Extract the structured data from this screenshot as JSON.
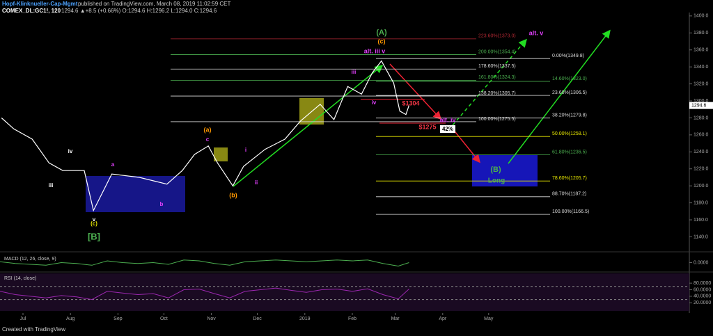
{
  "chart_data": {
    "type": "line",
    "title": "Hopf-Klinknueller-Cap-Mgmt",
    "subtitle": "published on TradingView.com, March 08, 2019 11:02:59 CET",
    "symbol": "COMEX_DL:GC1!, 120",
    "quote": "1294.6 ▲+8.5 (+0.66%) O:1294.6 H:1296.2 L:1294.0 C:1294.6",
    "xlim": [
      -15,
      435
    ],
    "xticks": [
      {
        "value": 0,
        "label": "Jul"
      },
      {
        "value": 31,
        "label": "Aug"
      },
      {
        "value": 62,
        "label": "Sep"
      },
      {
        "value": 92,
        "label": "Oct"
      },
      {
        "value": 123,
        "label": "Nov"
      },
      {
        "value": 153,
        "label": "Dec"
      },
      {
        "value": 184,
        "label": "2019"
      },
      {
        "value": 215,
        "label": "Feb"
      },
      {
        "value": 243,
        "label": "Mar"
      },
      {
        "value": 274,
        "label": "Apr"
      },
      {
        "value": 304,
        "label": "May"
      }
    ],
    "ylim": [
      1124,
      1404
    ],
    "yticks": [
      {
        "value": 1140,
        "label": "1140.0"
      },
      {
        "value": 1160,
        "label": "1160.0"
      },
      {
        "value": 1180,
        "label": "1180.0"
      },
      {
        "value": 1200,
        "label": "1200.0"
      },
      {
        "value": 1220,
        "label": "1220.0"
      },
      {
        "value": 1240,
        "label": "1240.0"
      },
      {
        "value": 1260,
        "label": "1260.0"
      },
      {
        "value": 1280,
        "label": "1280.0"
      },
      {
        "value": 1300,
        "label": "1300.0"
      },
      {
        "value": 1320,
        "label": "1320.0"
      },
      {
        "value": 1340,
        "label": "1340.0"
      },
      {
        "value": 1360,
        "label": "1360.0"
      },
      {
        "value": 1380,
        "label": "1380.0"
      },
      {
        "value": 1400,
        "label": "1400.0"
      }
    ],
    "series": [
      {
        "color": "#ffffff",
        "x": [
          -14,
          -6,
          6,
          17,
          26,
          40,
          46,
          58,
          76,
          94,
          104,
          112,
          121,
          127,
          137,
          144,
          158,
          171,
          181,
          194,
          203,
          212,
          221,
          228,
          234,
          242,
          246,
          250,
          252
        ],
        "values": [
          1280,
          1267,
          1255,
          1227,
          1218,
          1218,
          1171,
          1214,
          1210,
          1202,
          1218,
          1237,
          1247,
          1227,
          1200,
          1223,
          1243,
          1255,
          1276,
          1296,
          1278,
          1317,
          1308,
          1333,
          1347,
          1321,
          1288,
          1284,
          1294.6
        ]
      }
    ],
    "last_price": 1294.6,
    "fib_levels": [
      {
        "label": "223.60%(1373.0)",
        "value": 1373.0,
        "color": "#b22833"
      },
      {
        "label": "200.00%(1354.4)",
        "value": 1354.4,
        "color": "#4caf50"
      },
      {
        "label": "178.60%(1337.5)",
        "value": 1337.5,
        "color": "#dddddd"
      },
      {
        "label": "161.80%(1324.3)",
        "value": 1324.3,
        "color": "#4caf50"
      },
      {
        "label": "138.20%(1305.7)",
        "value": 1305.7,
        "color": "#dddddd"
      },
      {
        "label": "100.00%(1275.5)",
        "value": 1275.5,
        "color": "#dddddd"
      }
    ],
    "fib_levels_2": [
      {
        "label": "0.00%(1349.8)",
        "value": 1349.8,
        "color": "#dddddd"
      },
      {
        "label": "14.60%(1323.0)",
        "value": 1323.0,
        "color": "#4caf50"
      },
      {
        "label": "23.60%(1306.5)",
        "value": 1306.5,
        "color": "#dddddd"
      },
      {
        "label": "38.20%(1279.8)",
        "value": 1279.8,
        "color": "#dddddd"
      },
      {
        "label": "50.00%(1258.1)",
        "value": 1258.1,
        "color": "#e8e800"
      },
      {
        "label": "61.80%(1236.5)",
        "value": 1236.5,
        "color": "#4caf50"
      },
      {
        "label": "78.60%(1205.7)",
        "value": 1205.7,
        "color": "#e8e800"
      },
      {
        "label": "88.70%(1187.2)",
        "value": 1187.2,
        "color": "#dddddd"
      },
      {
        "label": "100.00%(1166.5)",
        "value": 1166.5,
        "color": "#dddddd"
      }
    ],
    "annotations": [
      {
        "text": "(A)",
        "color": "#4caf50"
      },
      {
        "text": "(c)",
        "color": "#ff9800"
      },
      {
        "text": "alt. iii  v",
        "color": "#e040fb"
      },
      {
        "text": "alt. v",
        "color": "#e040fb"
      },
      {
        "text": "iii",
        "color": "#e040fb"
      },
      {
        "text": "iv",
        "color": "#e040fb"
      },
      {
        "text": "$1304",
        "color": "#f23645"
      },
      {
        "text": "$1275",
        "color": "#f23645"
      },
      {
        "text": "alt. iv",
        "color": "#e040fb"
      },
      {
        "text": "(B)",
        "color": "#4caf50"
      },
      {
        "text": "Long",
        "color": "#4caf50"
      },
      {
        "text": "(a)",
        "color": "#ff9800"
      },
      {
        "text": "c",
        "color": "#e040fb"
      },
      {
        "text": "(b)",
        "color": "#ff9800"
      },
      {
        "text": "i",
        "color": "#e040fb"
      },
      {
        "text": "ii",
        "color": "#e040fb"
      },
      {
        "text": "a",
        "color": "#e040fb"
      },
      {
        "text": "b",
        "color": "#e040fb"
      },
      {
        "text": "iv",
        "color": "#ffffff"
      },
      {
        "text": "iii",
        "color": "#ffffff"
      },
      {
        "text": "v",
        "color": "#ffffff"
      },
      {
        "text": "(c)",
        "color": "#e8e800"
      },
      {
        "text": "[B]",
        "color": "#4caf50"
      }
    ],
    "box_label": "42%",
    "indicators": [
      {
        "type": "line",
        "title": "MACD (12, 26, close, 9)",
        "ylim": [
          -10,
          10
        ],
        "yticks": [
          {
            "value": 0,
            "label": "0.0000"
          }
        ],
        "color": "#4caf50",
        "x": [
          -15,
          -5,
          5,
          15,
          25,
          35,
          45,
          55,
          65,
          75,
          85,
          95,
          105,
          115,
          125,
          135,
          145,
          155,
          165,
          175,
          185,
          195,
          205,
          215,
          225,
          235,
          245,
          252
        ],
        "values": [
          1,
          -1,
          -2,
          -3,
          0,
          -1,
          -3,
          2,
          0,
          -1,
          0,
          -2,
          3,
          2,
          -1,
          -3,
          1,
          2,
          3,
          2,
          1,
          2,
          3,
          2,
          3,
          -1,
          -4,
          0
        ]
      },
      {
        "type": "line",
        "title": "RSI (14, close)",
        "ylim": [
          -5,
          110
        ],
        "yticks": [
          {
            "value": 20,
            "label": "20.0000"
          },
          {
            "value": 40,
            "label": "40.0000"
          },
          {
            "value": 60,
            "label": "60.0000"
          },
          {
            "value": 80,
            "label": "80.0000"
          }
        ],
        "bands": [
          30,
          70
        ],
        "color": "#9c27b0",
        "x": [
          -15,
          -5,
          5,
          15,
          25,
          35,
          45,
          55,
          65,
          75,
          85,
          95,
          105,
          115,
          125,
          135,
          145,
          155,
          165,
          175,
          185,
          195,
          205,
          215,
          225,
          235,
          245,
          252
        ],
        "values": [
          55,
          45,
          40,
          35,
          42,
          38,
          30,
          55,
          50,
          45,
          48,
          35,
          60,
          62,
          48,
          35,
          55,
          60,
          65,
          58,
          52,
          60,
          62,
          55,
          63,
          45,
          32,
          62
        ]
      }
    ],
    "footer": "Created with TradingView"
  }
}
